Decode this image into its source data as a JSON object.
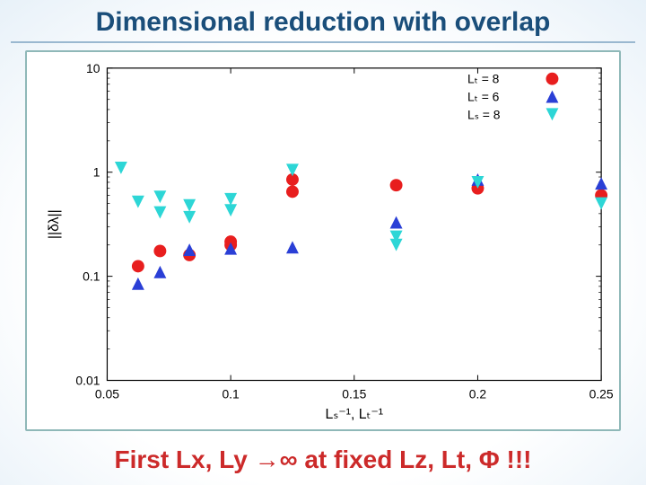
{
  "title": "Dimensional reduction with overlap",
  "footer": "First Lx, Ly →∞ at fixed Lz, Lt, Φ !!!",
  "chart": {
    "type": "scatter",
    "background_color": "#ffffff",
    "border_color": "#8fb8b8",
    "axis_color": "#000000",
    "tick_fontsize": 14,
    "label_fontsize": 16,
    "y_scale": "log",
    "x_scale": "linear",
    "xlim": [
      0.05,
      0.25
    ],
    "ylim": [
      0.01,
      10
    ],
    "xticks": [
      0.05,
      0.1,
      0.15,
      0.2,
      0.25
    ],
    "xtick_labels": [
      "0.05",
      "0.1",
      "0.15",
      "0.2",
      "0.25"
    ],
    "yticks": [
      0.01,
      0.1,
      1,
      10
    ],
    "ytick_labels": [
      "0.01",
      "0.1",
      "1",
      "10"
    ],
    "xlabel": "Lₛ⁻¹, Lₜ⁻¹",
    "ylabel": "||δλ||",
    "legend": {
      "position": "top-right",
      "fontsize": 14,
      "items": [
        {
          "label": "Lₜ = 8",
          "marker": "circle",
          "color": "#e81e1e"
        },
        {
          "label": "Lₜ = 6",
          "marker": "triangle-up",
          "color": "#2a3fd6"
        },
        {
          "label": "Lₛ = 8",
          "marker": "triangle-down",
          "color": "#2dd6d6"
        }
      ]
    },
    "marker_size": 7,
    "series": [
      {
        "name": "Lt=8",
        "marker": "circle",
        "color": "#e81e1e",
        "points": [
          [
            0.0625,
            0.125
          ],
          [
            0.0714,
            0.175
          ],
          [
            0.0833,
            0.16
          ],
          [
            0.1,
            0.2
          ],
          [
            0.1,
            0.215
          ],
          [
            0.125,
            0.65
          ],
          [
            0.125,
            0.85
          ],
          [
            0.167,
            0.75
          ],
          [
            0.2,
            0.7
          ],
          [
            0.25,
            0.6
          ]
        ]
      },
      {
        "name": "Lt=6",
        "marker": "triangle-up",
        "color": "#2a3fd6",
        "points": [
          [
            0.0625,
            0.085
          ],
          [
            0.0714,
            0.11
          ],
          [
            0.0833,
            0.18
          ],
          [
            0.1,
            0.185
          ],
          [
            0.125,
            0.19
          ],
          [
            0.167,
            0.33
          ],
          [
            0.2,
            0.85
          ],
          [
            0.25,
            0.78
          ]
        ]
      },
      {
        "name": "Ls=8",
        "marker": "triangle-down",
        "color": "#2dd6d6",
        "points": [
          [
            0.0556,
            1.1
          ],
          [
            0.0625,
            0.52
          ],
          [
            0.0714,
            0.58
          ],
          [
            0.0714,
            0.41
          ],
          [
            0.0833,
            0.37
          ],
          [
            0.0833,
            0.48
          ],
          [
            0.1,
            0.43
          ],
          [
            0.1,
            0.55
          ],
          [
            0.125,
            1.05
          ],
          [
            0.167,
            0.24
          ],
          [
            0.167,
            0.2
          ],
          [
            0.2,
            0.8
          ],
          [
            0.25,
            0.5
          ]
        ]
      }
    ]
  }
}
